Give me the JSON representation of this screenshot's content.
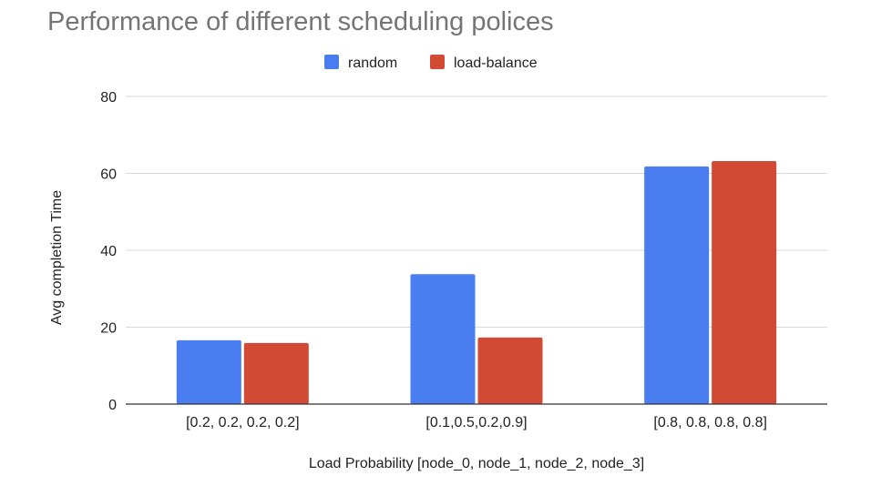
{
  "chart_data": {
    "type": "bar",
    "title": "Performance of different scheduling polices",
    "xlabel": "Load Probability [node_0, node_1, node_2, node_3]",
    "ylabel": "Avg completion Time",
    "categories": [
      "[0.2, 0.2, 0.2, 0.2]",
      "[0.1,0.5,0.2,0.9]",
      "[0.8, 0.8, 0.8, 0.8]"
    ],
    "series": [
      {
        "name": "random",
        "color": "#4a7def",
        "values": [
          16.6,
          33.8,
          61.8
        ]
      },
      {
        "name": "load-balance",
        "color": "#d34a34",
        "values": [
          15.9,
          17.3,
          63.2
        ]
      }
    ],
    "ylim": [
      0,
      80
    ],
    "yticks": [
      0,
      20,
      40,
      60,
      80
    ],
    "grid": true,
    "legend_position": "top-center"
  },
  "colors": {
    "grid": "#d9d9d9",
    "axis": "#333333",
    "title": "#757575"
  }
}
